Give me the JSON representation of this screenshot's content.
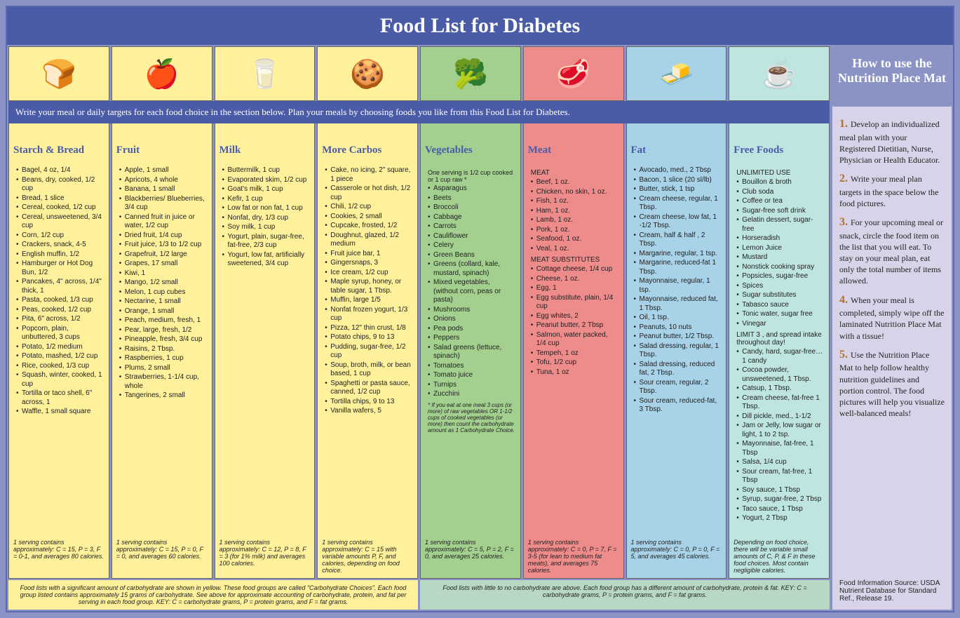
{
  "title": "Food List for Diabetes",
  "instruction": "Write your meal or daily targets for each food choice in the section below. Plan your meals by choosing foods you like from this Food List for Diabetes.",
  "colors": {
    "frame": "#8a93c4",
    "title_bg": "#4a5ca8",
    "yellow": "#fff19b",
    "green": "#a3cf8f",
    "red": "#ee8b8b",
    "blue": "#a8d2e8",
    "teal": "#bfe5e0",
    "sidebar": "#d8d3e8",
    "heading_text": "#4a5ca8",
    "step_num": "#b07030"
  },
  "columns": [
    {
      "key": "starch",
      "icon": "🍞",
      "header": "Starch & Bread",
      "color": "#fff19b",
      "items": [
        "Bagel, 4 oz, 1/4",
        "Beans, dry, cooked, 1/2  cup",
        "Bread, 1 slice",
        "Cereal, cooked, 1/2 cup",
        "Cereal, unsweetened, 3/4 cup",
        "Corn, 1/2 cup",
        "Crackers, snack, 4-5",
        "English muffin, 1/2",
        "Hamburger or Hot Dog Bun, 1/2",
        "Pancakes, 4\" across, 1/4\" thick, 1",
        "Pasta, cooked, 1/3 cup",
        "Peas, cooked, 1/2 cup",
        "Pita, 6\" across, 1/2",
        "Popcorn, plain, unbuttered, 3 cups",
        "Potato, 1/2 medium",
        "Potato, mashed, 1/2 cup",
        "Rice, cooked, 1/3 cup",
        "Squash, winter, cooked, 1 cup",
        "Tortilla or taco shell, 6\" across, 1",
        "Waffle, 1 small square"
      ],
      "footer": "1 serving contains approximately: C = 15, P = 3, F = 0-1, and averages 80 calories."
    },
    {
      "key": "fruit",
      "icon": "🍎",
      "header": "Fruit",
      "color": "#fff19b",
      "items": [
        "Apple, 1 small",
        "Apricots, 4 whole",
        "Banana, 1 small",
        "Blackberries/ Blueberries, 3/4 cup",
        "Canned fruit in juice or water, 1/2 cup",
        "Dried fruit, 1/4 cup",
        "Fruit juice, 1/3 to 1/2 cup",
        "Grapefruit, 1/2 large",
        "Grapes, 17 small",
        "Kiwi, 1",
        "Mango, 1/2 small",
        "Melon, 1 cup cubes",
        "Nectarine, 1 small",
        "Orange, 1 small",
        "Peach, medium, fresh, 1",
        "Pear, large, fresh, 1/2",
        "Pineapple, fresh, 3/4 cup",
        "Raisins, 2 Tbsp.",
        "Raspberries, 1 cup",
        "Plums, 2 small",
        "Strawberries, 1-1/4 cup, whole",
        "Tangerines, 2 small"
      ],
      "footer": "1 serving contains approximately: C = 15, P = 0, F = 0, and averages 60 calories."
    },
    {
      "key": "milk",
      "icon": "🥛",
      "header": "Milk",
      "color": "#fff19b",
      "items": [
        "Buttermilk, 1 cup",
        "Evaporated skim, 1/2 cup",
        "Goat's milk, 1 cup",
        "Kefir, 1 cup",
        "Low fat or non fat, 1 cup",
        "Nonfat, dry, 1/3 cup",
        "Soy milk, 1 cup",
        "Yogurt, plain, sugar-free, fat-free, 2/3 cup",
        "Yogurt, low fat, artificially sweetened, 3/4 cup"
      ],
      "footer": "1 serving contains approximately: C = 12, P = 8, F = 3 (for 1% milk) and averages 100 calories."
    },
    {
      "key": "carbos",
      "icon": "🍪",
      "header": "More Carbos",
      "color": "#fff19b",
      "items": [
        "Cake, no icing, 2\" square, 1 piece",
        "Casserole or hot dish, 1/2 cup",
        "Chili, 1/2 cup",
        "Cookies, 2 small",
        "Cupcake, frosted, 1/2",
        "Doughnut, glazed, 1/2 medium",
        "Fruit juice bar, 1",
        "Gingersnaps, 3",
        "Ice cream, 1/2 cup",
        "Maple syrup, honey, or table sugar, 1 Tbsp.",
        "Muffin, large 1/5",
        "Nonfat frozen yogurt, 1/3 cup",
        "Pizza, 12\" thin crust, 1/8",
        "Potato chips, 9 to 13",
        "Pudding, sugar-free, 1/2 cup",
        "Soup, broth, milk, or bean based, 1 cup",
        "Spaghetti or pasta sauce, canned, 1/2 cup",
        "Tortilla chips, 9 to 13",
        "Vanilla wafers, 5"
      ],
      "footer": "1 serving contains approximately: C = 15 with variable amounts P, F, and calories, depending on food choice."
    },
    {
      "key": "veg",
      "icon": "🥦",
      "header": "Vegetables",
      "color": "#a3cf8f",
      "note_top": "One serving is 1/2 cup cooked or 1 cup raw *",
      "items": [
        "Asparagus",
        "Beets",
        "Broccoli",
        "Cabbage",
        "Carrots",
        "Cauliflower",
        "Celery",
        "Green Beans",
        "Greens (collard, kale, mustard, spinach)",
        "Mixed vegetables, (without corn, peas or pasta)",
        "Mushrooms",
        "Onions",
        "Pea pods",
        "Peppers",
        "Salad greens (lettuce, spinach)",
        "Tomatoes",
        "Tomato juice",
        "Turnips",
        "Zucchini"
      ],
      "footnote": "* If you eat at one meal 3 cups (or more) of raw vegetables OR 1-1/2  cups of cooked vegetables (or more) then count the carbohydrate amount as 1 Carbohydrate Choice.",
      "footer": "1 serving contains approximately: C = 5, P = 2, F = 0, and averages 25 calories."
    },
    {
      "key": "meat",
      "icon": "🥩",
      "header": "Meat",
      "color": "#ee8b8b",
      "sections": [
        {
          "title": "MEAT",
          "items": [
            "Beef, 1 oz.",
            "Chicken, no skin, 1 oz.",
            "Fish, 1 oz.",
            "Ham, 1 oz.",
            "Lamb, 1 oz.",
            "Pork, 1 oz.",
            "Seafood, 1 oz.",
            "Veal, 1 oz."
          ]
        },
        {
          "title": "MEAT SUBSTITUTES",
          "items": [
            "Cottage cheese, 1/4 cup",
            "Cheese, 1 oz.",
            "Egg, 1",
            "Egg substitute, plain, 1/4 cup",
            "Egg whites, 2",
            "Peanut butter, 2 Tbsp",
            "Salmon, water packed, 1/4 cup",
            "Tempeh, 1 oz",
            "Tofu, 1/2 cup",
            "Tuna, 1 oz"
          ]
        }
      ],
      "footer": "1 serving contains approximately: C = 0, P = 7, F = 3-5 (for lean to medium fat meats), and averages 75 calories."
    },
    {
      "key": "fat",
      "icon": "🧈",
      "header": "Fat",
      "color": "#a8d2e8",
      "items": [
        "Avocado, med., 2 Tbsp",
        "Bacon, 1 slice (20 sl/lb)",
        "Butter, stick, 1 tsp",
        "Cream cheese, regular, 1 Tbsp.",
        "Cream cheese, low fat, 1 -1/2 Tbsp.",
        "Cream, half & half , 2 Tbsp.",
        "Margarine, regular, 1 tsp.",
        "Margarine, reduced-fat 1 Tbsp.",
        "Mayonnaise, regular, 1 tsp.",
        "Mayonnaise, reduced fat, 1 Tbsp.",
        "Oil, 1 tsp.",
        "Peanuts, 10 nuts",
        "Peanut butter, 1/2 Tbsp.",
        "Salad dressing, regular, 1 Tbsp.",
        "Salad dressing, reduced fat, 2 Tbsp.",
        "Sour cream, regular, 2 Tbsp.",
        "Sour cream, reduced-fat, 3 Tbsp."
      ],
      "footer": "1 serving contains approximately: C = 0, P = 0, F = 5, and averages 45 calories."
    },
    {
      "key": "free",
      "icon": "☕",
      "header": "Free Foods",
      "color": "#bfe5e0",
      "sections": [
        {
          "title": "UNLIMITED USE",
          "items": [
            "Bouillon & broth",
            "Club soda",
            "Coffee or tea",
            "Sugar-free  soft drink",
            "Gelatin dessert, sugar-free",
            "Horseradish",
            "Lemon Juice",
            "Mustard",
            "Nonstick cooking spray",
            "Popsicles, sugar-free",
            "Spices",
            "Sugar substitutes",
            "Tabasco sauce",
            "Tonic water, sugar free",
            "Vinegar"
          ]
        },
        {
          "title": "LIMIT 3 , and spread intake throughout day!",
          "items": [
            "Candy, hard, sugar-free…1 candy",
            "Cocoa powder, unsweetened, 1 Tbsp.",
            "Catsup, 1 Tbsp.",
            "Cream cheese, fat-free 1 Tbsp.",
            "Dill pickle, med., 1-1/2",
            "Jam or Jelly, low sugar or light, 1 to 2 tsp.",
            "Mayonnaise, fat-free, 1 Tbsp",
            "Salsa, 1/4 cup",
            "Sour cream, fat-free, 1 Tbsp",
            "Soy sauce, 1 Tbsp",
            "Syrup, sugar-free, 2 Tbsp",
            "Taco sauce, 1 Tbsp",
            "Yogurt, 2 Tbsp"
          ]
        }
      ],
      "footer": "Depending on food choice, there will be variable small amounts of C, P, & F in these food choices. Most contain negligible calories."
    }
  ],
  "bottom_notes": {
    "left": "Food lists with a significant amount of carbohydrate are shown in yellow.  These food groups are called \"Carbohydrate Choices\". Each food group listed contains approximately 15 grams of carbohydrate.  See above for approximate accounting of carbohydrate, protein, and fat per serving in each food group. KEY:  C = carbohydrate grams, P = protein grams, and F = fat grams.",
    "right": "Food lists with little to no carbohydrate are above. Each food group has a different amount of carbohydrate, protein & fat. KEY:  C = carbohydrate grams, P = protein grams, and F = fat grams."
  },
  "sidebar": {
    "title": "How to use the Nutrition Place Mat",
    "steps": [
      "Develop an individualized meal plan with your Registered Dietitian, Nurse, Physician or Health Educator.",
      "Write your meal plan targets in the space below the food pictures.",
      "For your upcoming meal or snack, circle the food item on the list that you will eat. To stay on your meal plan, eat only the total number of items allowed.",
      "When your meal is completed, simply wipe off the laminated Nutrition Place Mat with a tissue!",
      "Use the Nutrition Place Mat to help follow healthy nutrition guidelines and portion control. The food pictures will help you visualize well-balanced meals!"
    ],
    "source": "Food Information Source: USDA Nutrient Database for Standard Ref., Release 19."
  }
}
